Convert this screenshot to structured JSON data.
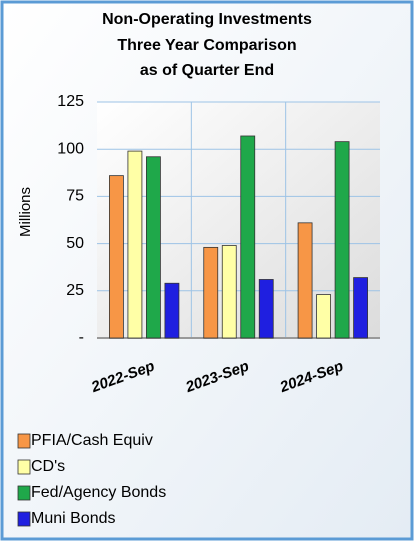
{
  "chart_data": {
    "type": "bar",
    "title": [
      "Non-Operating Investments",
      "Three Year Comparison",
      "as of Quarter End"
    ],
    "y_label": "Millions",
    "categories": [
      "2022-Sep",
      "2023-Sep",
      "2024-Sep"
    ],
    "series": [
      {
        "name": "PFIA/Cash Equiv",
        "color": "#f79646",
        "values": [
          86,
          48,
          61
        ]
      },
      {
        "name": "CD's",
        "color": "#ffffa6",
        "values": [
          99,
          49,
          23
        ]
      },
      {
        "name": "Fed/Agency Bonds",
        "color": "#1fa84a",
        "values": [
          96,
          107,
          104
        ]
      },
      {
        "name": "Muni Bonds",
        "color": "#1f1fe0",
        "values": [
          29,
          31,
          32
        ]
      }
    ],
    "ylim": [
      0,
      125
    ],
    "yticks": [
      {
        "value": 0,
        "label": "-"
      },
      25,
      50,
      75,
      100,
      125
    ],
    "grid": true,
    "legend": "bottom"
  }
}
